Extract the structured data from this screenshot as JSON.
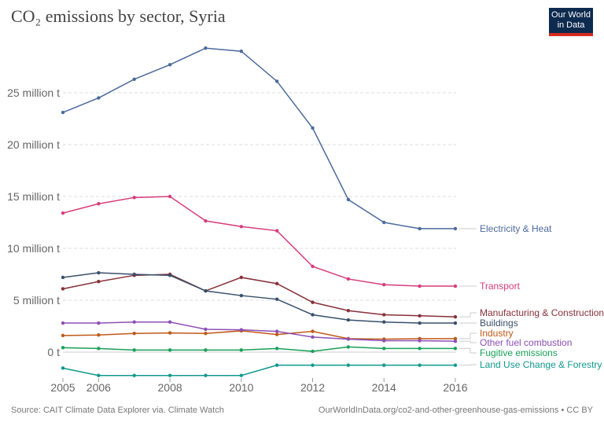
{
  "chart_data": {
    "type": "line",
    "title": "CO₂ emissions by sector, Syria",
    "x": [
      2005,
      2006,
      2007,
      2008,
      2009,
      2010,
      2011,
      2012,
      2013,
      2014,
      2015,
      2016
    ],
    "x_ticks": [
      2005,
      2006,
      2008,
      2010,
      2012,
      2014,
      2016
    ],
    "y_ticks": [
      0,
      5,
      10,
      15,
      20,
      25
    ],
    "y_tick_labels": [
      "0 t",
      "5 million t",
      "10 million t",
      "15 million t",
      "20 million t",
      "25 million t"
    ],
    "ylim": [
      -2.5,
      30
    ],
    "grid": "horizontal dashed",
    "legend": "right, labels at line ends",
    "series": [
      {
        "name": "Electricity & Heat",
        "color": "#4c6a9c",
        "values": [
          23.1,
          24.5,
          26.3,
          27.7,
          29.3,
          29.0,
          26.1,
          21.6,
          14.7,
          12.5,
          11.9,
          11.9
        ]
      },
      {
        "name": "Transport",
        "color": "#d73c7c",
        "values": [
          13.4,
          14.3,
          14.9,
          15.0,
          12.65,
          12.1,
          11.7,
          8.26,
          7.05,
          6.5,
          6.36,
          6.36
        ]
      },
      {
        "name": "Manufacturing & Construction",
        "color": "#883039",
        "values": [
          6.1,
          6.8,
          7.4,
          7.5,
          5.9,
          7.2,
          6.6,
          4.8,
          4.0,
          3.6,
          3.5,
          3.4
        ]
      },
      {
        "name": "Buildings",
        "color": "#38506b",
        "values": [
          7.2,
          7.65,
          7.5,
          7.4,
          5.9,
          5.45,
          5.1,
          3.6,
          3.1,
          2.9,
          2.8,
          2.8
        ]
      },
      {
        "name": "Industry",
        "color": "#c05917",
        "values": [
          1.6,
          1.65,
          1.8,
          1.85,
          1.8,
          2.05,
          1.7,
          2.0,
          1.3,
          1.25,
          1.3,
          1.3
        ]
      },
      {
        "name": "Other fuel combustion",
        "color": "#8c4fb6",
        "values": [
          2.8,
          2.8,
          2.9,
          2.9,
          2.2,
          2.15,
          2.0,
          1.45,
          1.25,
          1.1,
          1.1,
          1.05
        ]
      },
      {
        "name": "Fugitive emissions",
        "color": "#18a058",
        "values": [
          0.43,
          0.35,
          0.2,
          0.2,
          0.2,
          0.2,
          0.35,
          0.08,
          0.5,
          0.35,
          0.35,
          0.35
        ]
      },
      {
        "name": "Land Use Change & Forestry",
        "color": "#109a8e",
        "values": [
          -1.54,
          -2.25,
          -2.25,
          -2.25,
          -2.25,
          -2.25,
          -1.26,
          -1.26,
          -1.26,
          -1.26,
          -1.26,
          -1.26
        ]
      }
    ]
  },
  "logo": {
    "line1": "Our World",
    "line2": "in Data"
  },
  "footer": {
    "source": "Source: CAIT Climate Data Explorer via. Climate Watch",
    "url": "OurWorldInData.org/co2-and-other-greenhouse-gas-emissions • CC BY"
  }
}
